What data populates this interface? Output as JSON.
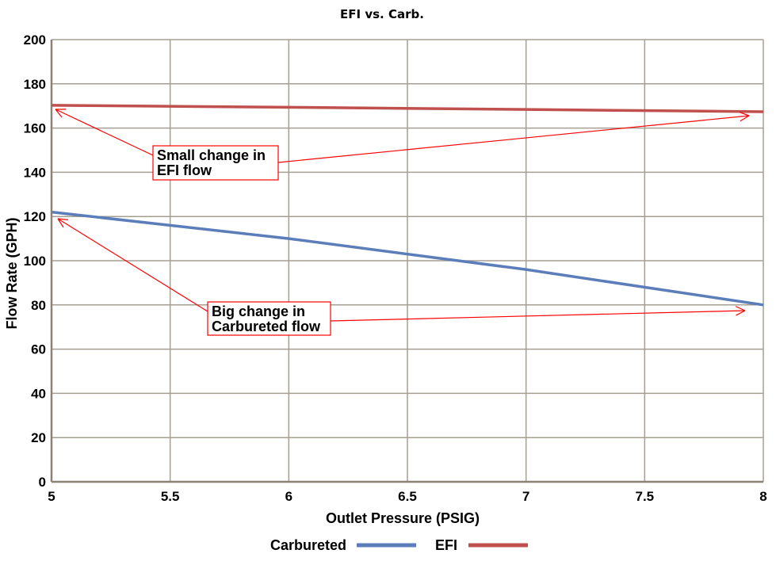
{
  "chart_data": {
    "type": "line",
    "title": "EFI vs. Carb.",
    "xlabel": "Outlet Pressure (PSIG)",
    "ylabel": "Flow Rate (GPH)",
    "xlim": [
      5,
      8
    ],
    "ylim": [
      0,
      200
    ],
    "x_ticks": [
      "5",
      "5.5",
      "6",
      "6.5",
      "7",
      "7.5",
      "8"
    ],
    "y_ticks": [
      "0",
      "20",
      "40",
      "60",
      "80",
      "100",
      "120",
      "140",
      "160",
      "180",
      "200"
    ],
    "grid": true,
    "legend_position": "bottom",
    "x": [
      5,
      6,
      7,
      8
    ],
    "series": [
      {
        "name": "Carbureted",
        "values": [
          122,
          110,
          96,
          80
        ],
        "color": "#5b7dba"
      },
      {
        "name": "EFI",
        "values": [
          170.3,
          169.4,
          168.4,
          167.4
        ],
        "color": "#c0504d"
      }
    ],
    "annotations": [
      {
        "lines": [
          "Small change in",
          "EFI flow"
        ],
        "color": "#ff0000"
      },
      {
        "lines": [
          "Big change in",
          "Carbureted flow"
        ],
        "color": "#ff0000"
      }
    ]
  }
}
